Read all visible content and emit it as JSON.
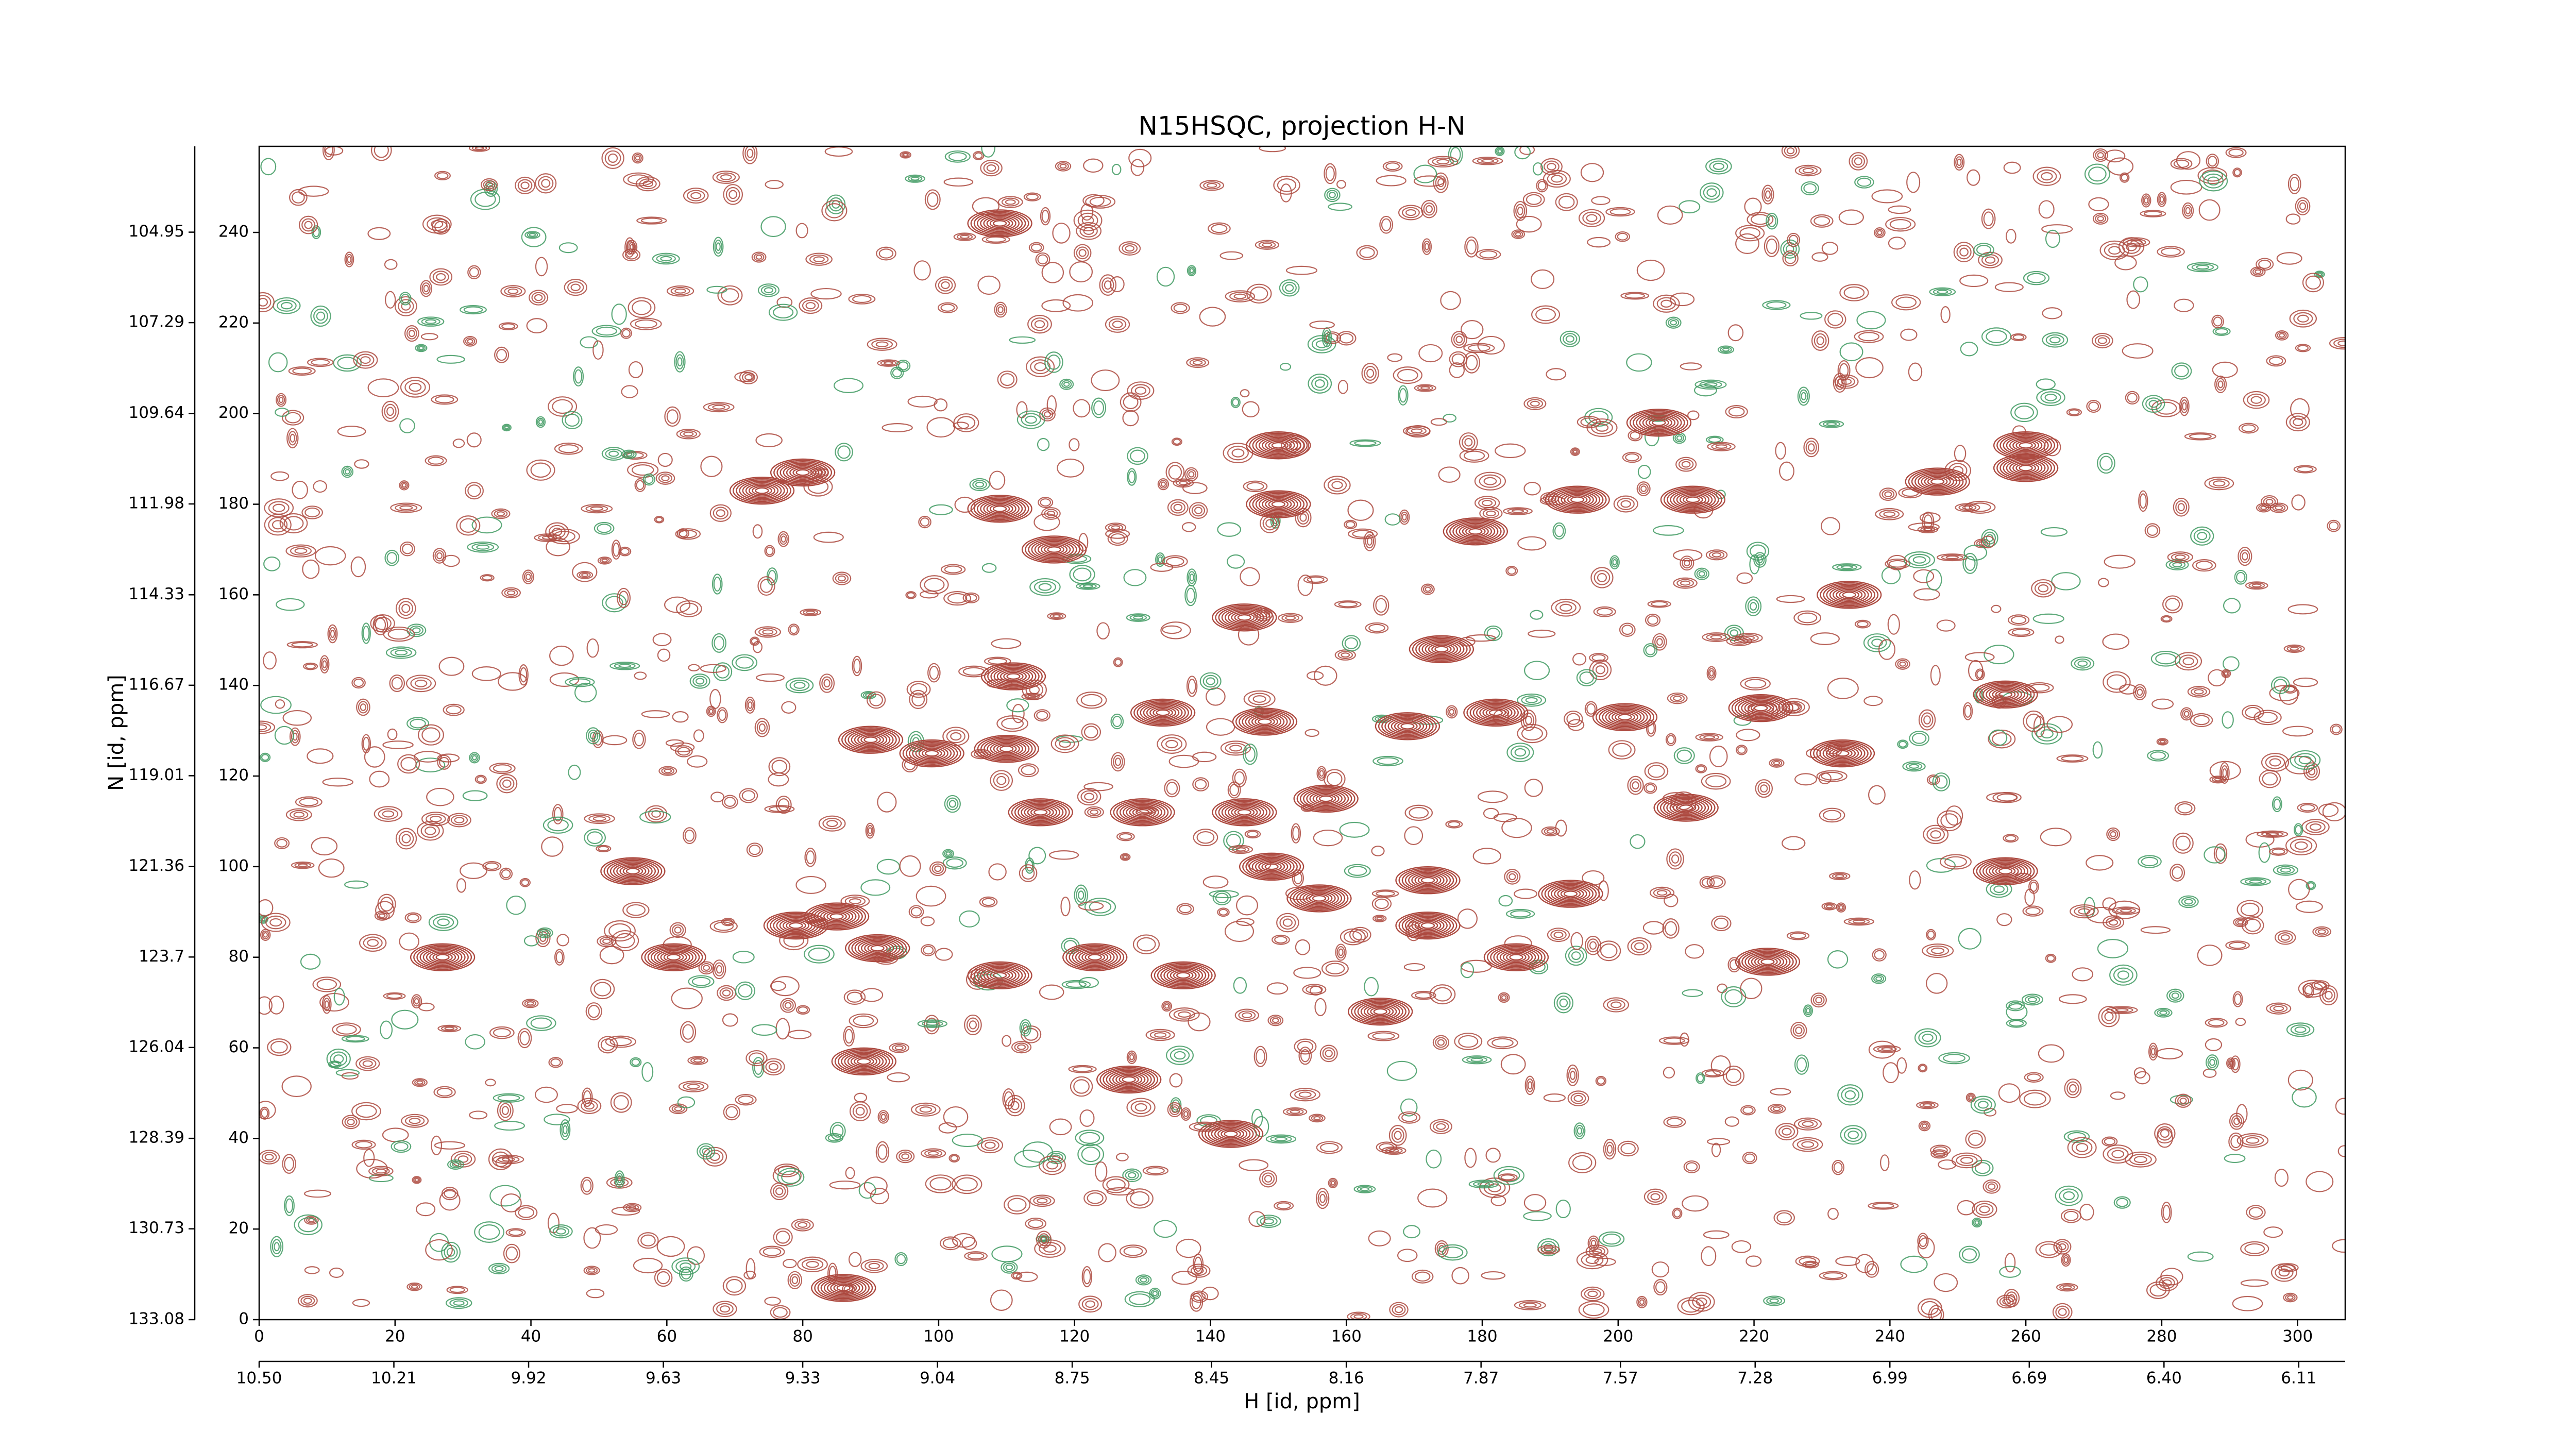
{
  "chart_data": {
    "type": "contour",
    "title": "N15HSQC, projection H-N",
    "xlabel": "H [id, ppm]",
    "ylabel": "N [id, ppm]",
    "color": "#ad4a40",
    "negative_color": "#3f9a62",
    "x": [
      109,
      74,
      80,
      109,
      117,
      150,
      150,
      179,
      206,
      194,
      211,
      247,
      260,
      260,
      234,
      145,
      111,
      174,
      133,
      148,
      169,
      182,
      201,
      221,
      257,
      90,
      99,
      110,
      233,
      115,
      130,
      145,
      157,
      210,
      149,
      156,
      172,
      193,
      172,
      185,
      257,
      79,
      85,
      91,
      27,
      61,
      123,
      136,
      109,
      222,
      165,
      89,
      128,
      143,
      86,
      55
    ],
    "values": [
      242,
      183,
      187,
      179,
      170,
      193,
      180,
      174,
      198,
      181,
      181,
      185,
      193,
      188,
      160,
      155,
      142,
      148,
      134,
      132,
      131,
      134,
      133,
      135,
      138,
      128,
      125,
      126,
      125,
      112,
      112,
      112,
      115,
      113,
      100,
      93,
      97,
      94,
      87,
      80,
      99,
      87,
      89,
      82,
      80,
      80,
      80,
      76,
      76,
      79,
      68,
      57,
      53,
      41,
      7,
      99
    ],
    "xlim": [
      0,
      307
    ],
    "ylim": [
      0,
      259
    ],
    "xticks": [
      0,
      20,
      40,
      60,
      80,
      100,
      120,
      140,
      160,
      180,
      200,
      220,
      240,
      260,
      280,
      300
    ],
    "yticks": [
      0,
      20,
      40,
      60,
      80,
      100,
      120,
      140,
      160,
      180,
      200,
      220,
      240
    ],
    "x2lim": [
      10.5,
      6.01
    ],
    "x2ticks": [
      {
        "value": 10.5,
        "label": "10.50"
      },
      10.21,
      9.92,
      9.63,
      9.33,
      9.04,
      8.75,
      8.45,
      8.16,
      7.87,
      7.57,
      7.28,
      6.99,
      6.69,
      {
        "value": 6.4,
        "label": "6.40"
      },
      6.11
    ],
    "y2lim": [
      133.08,
      102.73
    ],
    "y2ticks": [
      133.08,
      130.73,
      128.39,
      126.04,
      123.7,
      121.36,
      119.01,
      116.67,
      114.33,
      111.98,
      109.64,
      107.29,
      104.95
    ],
    "y2tick_labels_fixed": null
  }
}
